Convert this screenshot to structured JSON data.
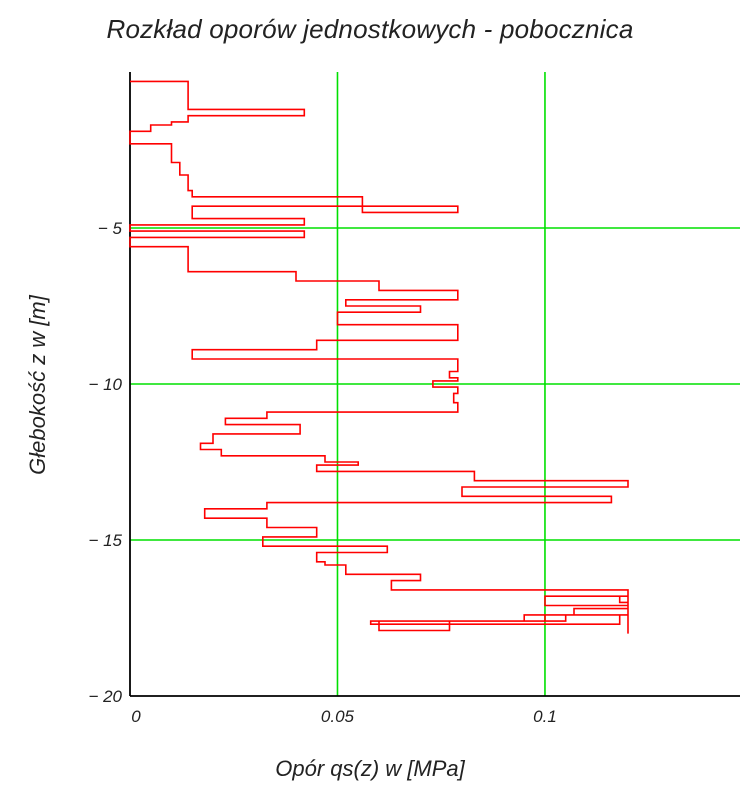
{
  "chart_data": {
    "type": "line",
    "title": "Rozkład oporów jednostkowych - pobocznica",
    "xlabel": "Opór qs(z) w [MPa]",
    "ylabel": "Głebokość z w [m]",
    "xlim": [
      0,
      0.147
    ],
    "ylim": [
      -20,
      0
    ],
    "x_ticks": [
      0,
      0.05,
      0.1
    ],
    "x_tick_labels": [
      "0",
      "0.05",
      "0.1"
    ],
    "y_ticks": [
      -5,
      -10,
      -15,
      -20
    ],
    "y_tick_labels": [
      "− 5",
      "− 10",
      "− 15",
      "− 20"
    ],
    "grid": true,
    "grid_x": [
      0.05,
      0.1
    ],
    "grid_y": [
      -5,
      -10,
      -15
    ],
    "colors": {
      "series": "#ff0000",
      "grid": "#00e000",
      "axis": "#000000"
    },
    "series": [
      {
        "name": "",
        "x": [
          0,
          0.014,
          0.014,
          0.042,
          0.042,
          0.014,
          0.014,
          0.01,
          0.01,
          0.005,
          0.005,
          0,
          0,
          0.01,
          0.01,
          0.012,
          0.012,
          0.014,
          0.014,
          0.015,
          0.015,
          0.056,
          0.056,
          0.079,
          0.079,
          0.015,
          0.015,
          0.042,
          0.042,
          0,
          0,
          0.042,
          0.042,
          0,
          0,
          0.014,
          0.014,
          0.04,
          0.04,
          0.06,
          0.06,
          0.079,
          0.079,
          0.052,
          0.052,
          0.07,
          0.07,
          0.05,
          0.05,
          0.079,
          0.079,
          0.045,
          0.045,
          0.015,
          0.015,
          0.079,
          0.079,
          0.077,
          0.077,
          0.079,
          0.079,
          0.073,
          0.073,
          0.079,
          0.079,
          0.078,
          0.078,
          0.079,
          0.079,
          0.033,
          0.033,
          0.023,
          0.023,
          0.041,
          0.041,
          0.02,
          0.02,
          0.017,
          0.017,
          0.022,
          0.022,
          0.047,
          0.047,
          0.055,
          0.055,
          0.045,
          0.045,
          0.083,
          0.083,
          0.12,
          0.12,
          0.08,
          0.08,
          0.116,
          0.116,
          0.033,
          0.033,
          0.018,
          0.018,
          0.033,
          0.033,
          0.045,
          0.045,
          0.032,
          0.032,
          0.062,
          0.062,
          0.045,
          0.045,
          0.047,
          0.047,
          0.052,
          0.052,
          0.07,
          0.07,
          0.063,
          0.063,
          0.12,
          0.12,
          0.118,
          0.118,
          0.12,
          0.12,
          0.107,
          0.107,
          0.1,
          0.1,
          0.06,
          0.06,
          0.077,
          0.077,
          0.095,
          0.095,
          0.118,
          0.118,
          0.058,
          0.058,
          0.105,
          0.105,
          0.12,
          0.12,
          0.1,
          0.1,
          0.12,
          0.12
        ],
        "y": [
          -0.3,
          -0.3,
          -1.2,
          -1.2,
          -1.4,
          -1.4,
          -1.6,
          -1.6,
          -1.7,
          -1.7,
          -1.9,
          -1.9,
          -2.3,
          -2.3,
          -2.9,
          -2.9,
          -3.3,
          -3.3,
          -3.8,
          -3.8,
          -4.0,
          -4.0,
          -4.5,
          -4.5,
          -4.3,
          -4.3,
          -4.7,
          -4.7,
          -4.9,
          -4.9,
          -5.1,
          -5.1,
          -5.3,
          -5.3,
          -5.6,
          -5.6,
          -6.4,
          -6.4,
          -6.7,
          -6.7,
          -7.0,
          -7.0,
          -7.3,
          -7.3,
          -7.5,
          -7.5,
          -7.7,
          -7.7,
          -8.1,
          -8.1,
          -8.6,
          -8.6,
          -8.9,
          -8.9,
          -9.2,
          -9.2,
          -9.6,
          -9.6,
          -9.8,
          -9.8,
          -9.9,
          -9.9,
          -10.1,
          -10.1,
          -10.3,
          -10.3,
          -10.6,
          -10.6,
          -10.9,
          -10.9,
          -11.1,
          -11.1,
          -11.3,
          -11.3,
          -11.6,
          -11.6,
          -11.9,
          -11.9,
          -12.1,
          -12.1,
          -12.3,
          -12.3,
          -12.5,
          -12.5,
          -12.6,
          -12.6,
          -12.8,
          -12.8,
          -13.1,
          -13.1,
          -13.3,
          -13.3,
          -13.6,
          -13.6,
          -13.8,
          -13.8,
          -14.0,
          -14.0,
          -14.3,
          -14.3,
          -14.6,
          -14.6,
          -14.9,
          -14.9,
          -15.2,
          -15.2,
          -15.4,
          -15.4,
          -15.7,
          -15.7,
          -15.8,
          -15.8,
          -16.1,
          -16.1,
          -16.3,
          -16.3,
          -16.6,
          -16.6,
          -16.8,
          -16.8,
          -17.0,
          -17.0,
          -17.2,
          -17.2,
          -17.4,
          -17.4,
          -17.6,
          -17.6,
          -17.9,
          -17.9,
          -17.6,
          -17.6,
          -17.4,
          -17.4,
          -17.7,
          -17.7,
          -17.6,
          -17.6,
          -17.4,
          -17.4,
          -17.1,
          -17.1,
          -16.8,
          -16.8,
          -18.0
        ]
      }
    ]
  }
}
